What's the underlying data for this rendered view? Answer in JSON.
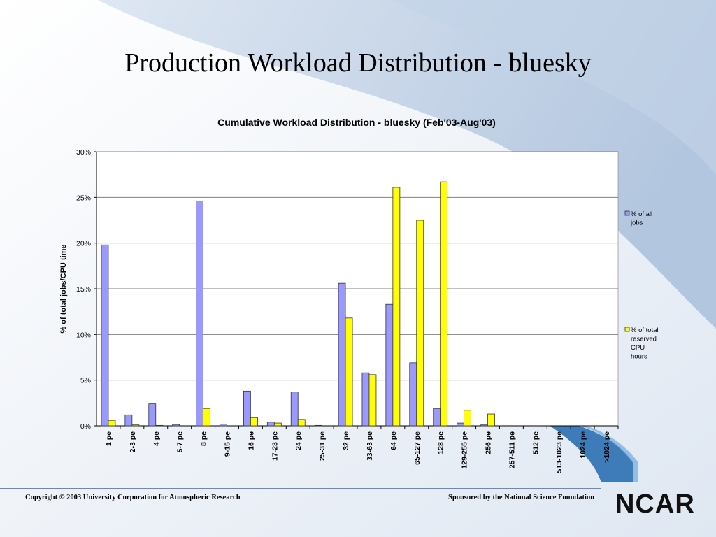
{
  "slide": {
    "title": "Production Workload Distribution - bluesky",
    "footer_left": "Copyright © 2003 University Corporation for Atmospheric Research",
    "footer_right": "Sponsored by the National Science Foundation",
    "logo": "NCAR"
  },
  "colors": {
    "series1": "#9999ff",
    "series2": "#ffff00",
    "bar_stroke": "#333333",
    "grid": "#808080",
    "plot_bg": "#ffffff"
  },
  "chart_data": {
    "type": "bar",
    "title": "Cumulative Workload Distribution - bluesky (Feb'03-Aug'03)",
    "xlabel": "",
    "ylabel": "% of total jobs/CPU time",
    "ylim": [
      0,
      30
    ],
    "yticks": [
      "0%",
      "5%",
      "10%",
      "15%",
      "20%",
      "25%",
      "30%"
    ],
    "grid": true,
    "legend_position": "right",
    "categories": [
      "1 pe",
      "2-3 pe",
      "4 pe",
      "5-7 pe",
      "8 pe",
      "9-15 pe",
      "16 pe",
      "17-23 pe",
      "24 pe",
      "25-31 pe",
      "32 pe",
      "33-63 pe",
      "64 pe",
      "65-127 pe",
      "128 pe",
      "129-255 pe",
      "256 pe",
      "257-511 pe",
      "512 pe",
      "513-1023 pe",
      "1024 pe",
      ">1024 pe"
    ],
    "series": [
      {
        "name": "% of all jobs",
        "legend_lines": [
          "% of all",
          "jobs"
        ],
        "values": [
          19.8,
          1.2,
          2.4,
          0.15,
          24.6,
          0.2,
          3.8,
          0.4,
          3.7,
          0.05,
          15.6,
          5.8,
          13.3,
          6.9,
          1.9,
          0.3,
          0.1,
          0,
          0,
          0,
          0,
          0
        ]
      },
      {
        "name": "% of total reserved CPU hours",
        "legend_lines": [
          "% of total",
          "reserved",
          "CPU",
          "hours"
        ],
        "values": [
          0.6,
          0.1,
          0.05,
          0,
          1.9,
          0,
          0.9,
          0.3,
          0.7,
          0,
          11.8,
          5.6,
          26.1,
          22.5,
          26.7,
          1.7,
          1.3,
          0,
          0,
          0,
          0,
          0
        ]
      }
    ]
  }
}
